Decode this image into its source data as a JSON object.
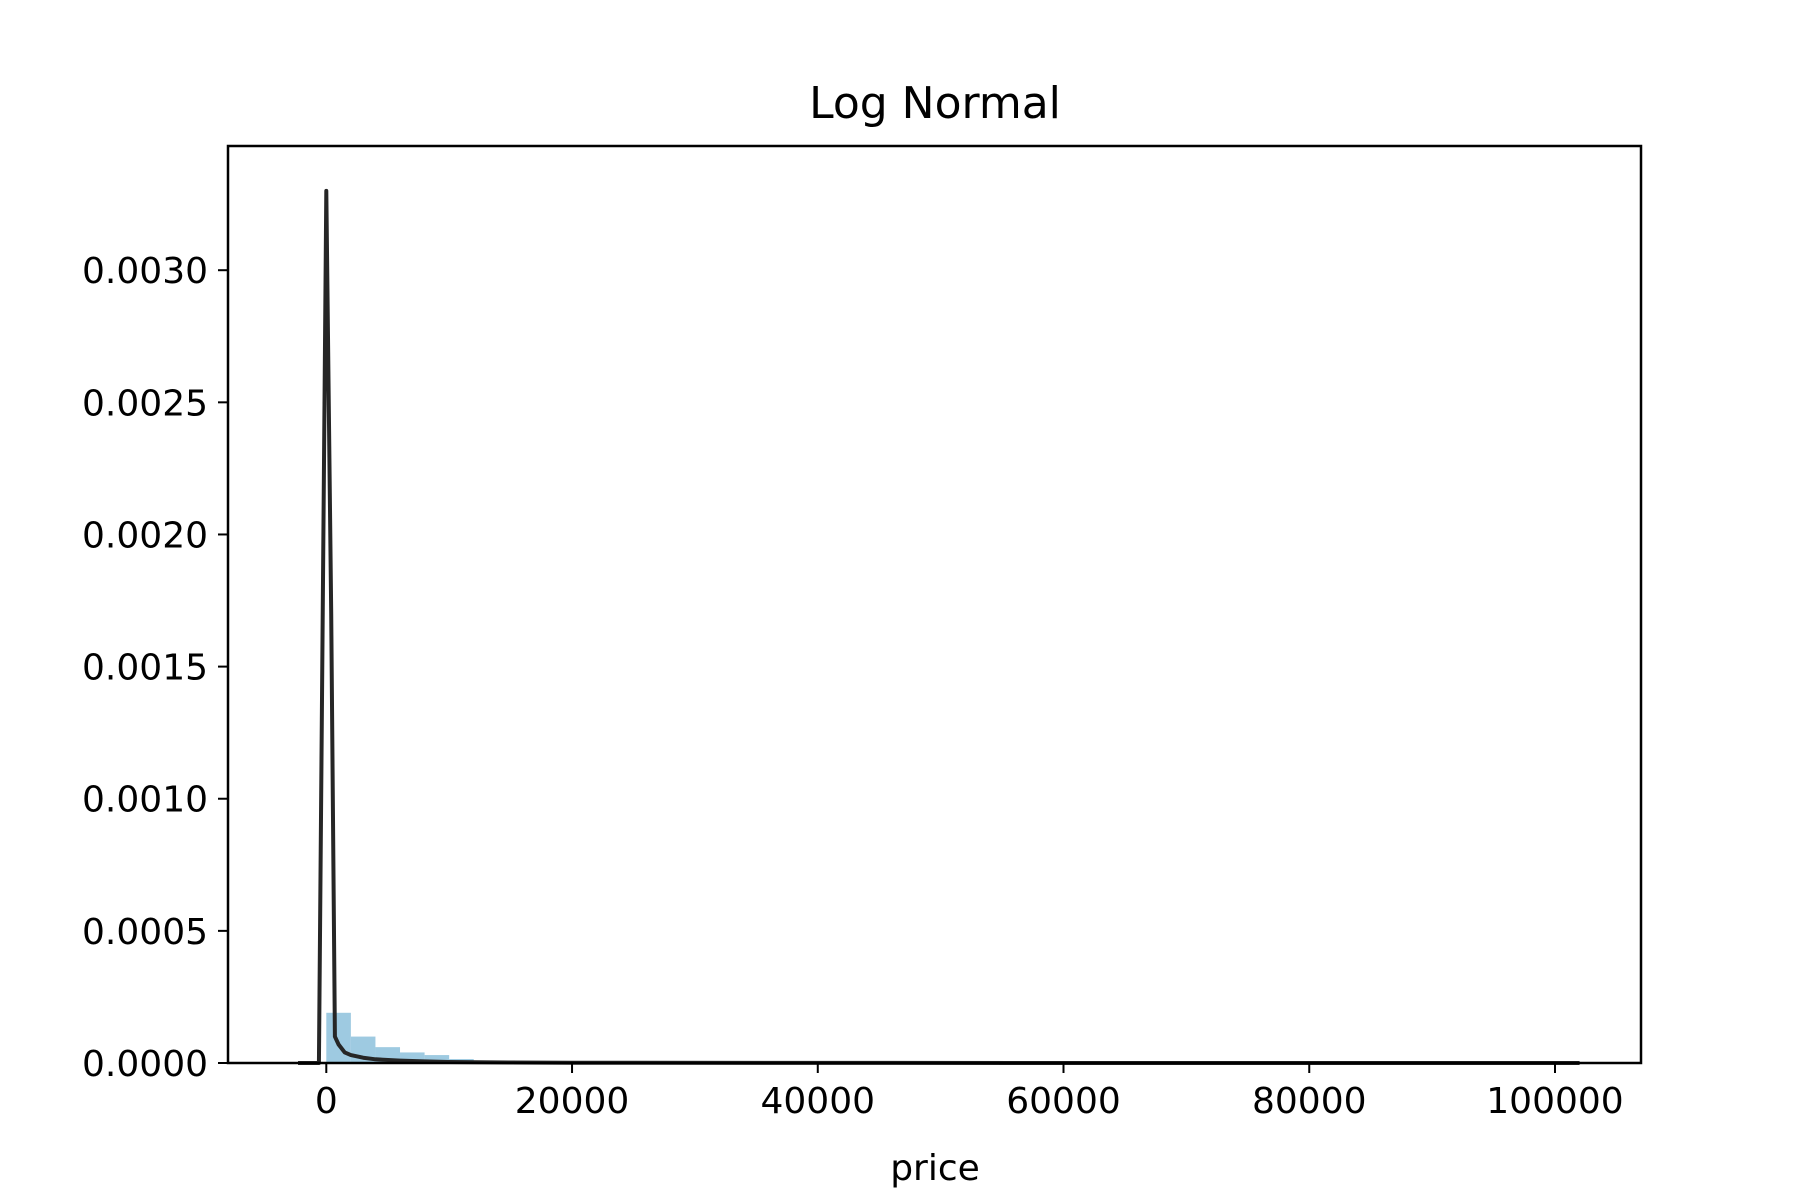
{
  "chart_data": {
    "type": "bar",
    "title": "Log Normal",
    "xlabel": "price",
    "ylabel": "",
    "xlim": [
      -8000,
      107000
    ],
    "ylim": [
      0,
      0.00347
    ],
    "xticks": [
      0,
      20000,
      40000,
      60000,
      80000,
      100000
    ],
    "xtick_labels": [
      "0",
      "20000",
      "40000",
      "60000",
      "80000",
      "100000"
    ],
    "yticks": [
      0,
      0.0005,
      0.001,
      0.0015,
      0.002,
      0.0025,
      0.003
    ],
    "ytick_labels": [
      "0.0000",
      "0.0005",
      "0.0010",
      "0.0015",
      "0.0020",
      "0.0025",
      "0.0030"
    ],
    "grid": false,
    "histogram": {
      "color": "#9ecae1",
      "bin_edges": [
        0,
        2000,
        4000,
        6000,
        8000,
        10000,
        12000,
        14000,
        16000
      ],
      "density": [
        0.00019,
        0.0001,
        6e-05,
        4e-05,
        3e-05,
        1.5e-05,
        8e-06,
        4e-06
      ]
    },
    "fit_line": {
      "color": "#262626",
      "x": [
        -2300,
        -600,
        0,
        400,
        700,
        1000,
        1500,
        2000,
        3000,
        4000,
        6000,
        8000,
        10000,
        15000,
        20000,
        40000,
        60000,
        80000,
        102000
      ],
      "y": [
        0,
        0,
        0.0033,
        0.0017,
        0.0001,
        7e-05,
        4e-05,
        3e-05,
        2e-05,
        1.4e-05,
        9e-06,
        6e-06,
        4e-06,
        2e-06,
        1e-06,
        4e-07,
        2e-07,
        1e-07,
        0
      ]
    }
  }
}
